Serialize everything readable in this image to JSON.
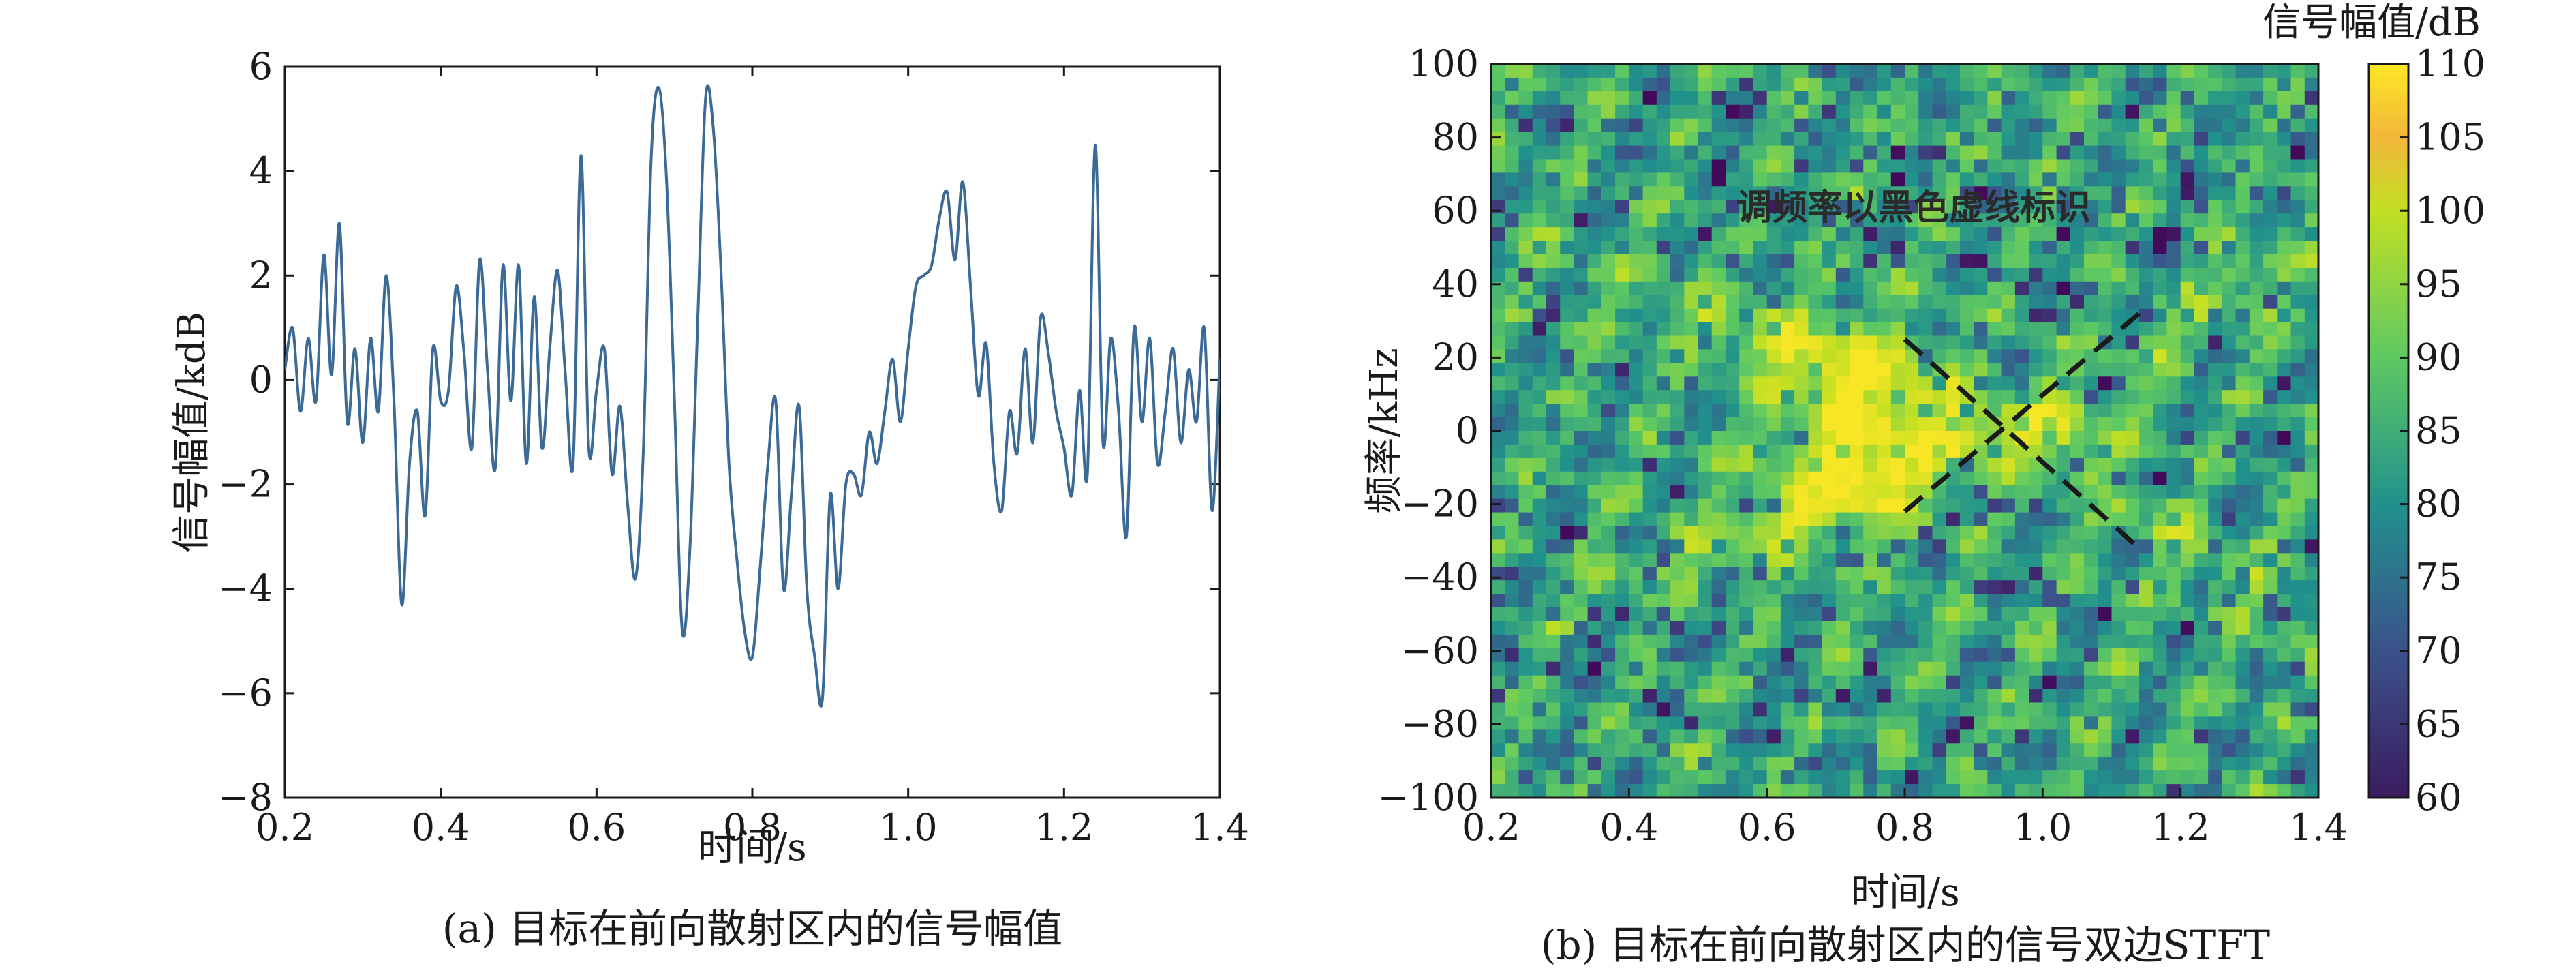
{
  "chart_data": [
    {
      "type": "line",
      "xlabel": "时间/s",
      "ylabel": "信号幅值/kdB",
      "caption": "(a) 目标在前向散射区内的信号幅值",
      "xlim": [
        0.2,
        1.4
      ],
      "ylim": [
        -8,
        6
      ],
      "xticks": [
        "0.2",
        "0.4",
        "0.6",
        "0.8",
        "1.0",
        "1.2",
        "1.4"
      ],
      "yticks": [
        "6",
        "4",
        "2",
        "0",
        "−2",
        "−4",
        "−6",
        "−8"
      ],
      "line_color": "#3b6a96",
      "series": [
        {
          "x": [
            0.2,
            0.21,
            0.22,
            0.23,
            0.24,
            0.25,
            0.26,
            0.27,
            0.28,
            0.29,
            0.3,
            0.31,
            0.32,
            0.33,
            0.34,
            0.35,
            0.36,
            0.37,
            0.38,
            0.39,
            0.4,
            0.41,
            0.42,
            0.43,
            0.44,
            0.45,
            0.46,
            0.47,
            0.48,
            0.49,
            0.5,
            0.51,
            0.52,
            0.53,
            0.54,
            0.55,
            0.56,
            0.57,
            0.58,
            0.59,
            0.6,
            0.61,
            0.62,
            0.63,
            0.64,
            0.65,
            0.66,
            0.67,
            0.68,
            0.69,
            0.7,
            0.71,
            0.72,
            0.73,
            0.74,
            0.75,
            0.76,
            0.77,
            0.78,
            0.79,
            0.8,
            0.81,
            0.82,
            0.83,
            0.84,
            0.85,
            0.86,
            0.87,
            0.88,
            0.89,
            0.9,
            0.91,
            0.92,
            0.93,
            0.94,
            0.95,
            0.96,
            0.97,
            0.98,
            0.99,
            1.0,
            1.01,
            1.02,
            1.03,
            1.04,
            1.05,
            1.06,
            1.07,
            1.08,
            1.09,
            1.1,
            1.11,
            1.12,
            1.13,
            1.14,
            1.15,
            1.16,
            1.17,
            1.18,
            1.19,
            1.2,
            1.21,
            1.22,
            1.23,
            1.24,
            1.25,
            1.26,
            1.27,
            1.28,
            1.29,
            1.3,
            1.31,
            1.32,
            1.33,
            1.34,
            1.35,
            1.36,
            1.37,
            1.38,
            1.39,
            1.4
          ],
          "y": [
            0.2,
            1.0,
            -0.6,
            0.8,
            -0.4,
            2.4,
            0.1,
            3.0,
            -0.8,
            0.6,
            -1.2,
            0.8,
            -0.6,
            2.0,
            -0.4,
            -4.3,
            -1.6,
            -0.6,
            -2.6,
            0.6,
            -0.4,
            -0.2,
            1.8,
            0.5,
            -1.3,
            2.3,
            0.2,
            -1.7,
            2.2,
            -0.4,
            2.2,
            -1.6,
            1.6,
            -1.3,
            0.6,
            2.1,
            0.1,
            -1.6,
            4.3,
            -1.3,
            -0.2,
            0.6,
            -1.8,
            -0.5,
            -2.4,
            -3.8,
            -1.4,
            4.2,
            5.6,
            3.8,
            -0.4,
            -4.8,
            -3.2,
            1.2,
            5.4,
            4.8,
            2.0,
            -1.6,
            -3.4,
            -4.8,
            -5.3,
            -3.6,
            -1.6,
            -0.4,
            -4.0,
            -2.2,
            -0.5,
            -4.0,
            -5.3,
            -6.1,
            -2.2,
            -4.0,
            -2.0,
            -1.8,
            -2.2,
            -1.0,
            -1.6,
            -0.6,
            0.4,
            -0.8,
            0.6,
            1.8,
            2.0,
            2.2,
            3.1,
            3.6,
            2.3,
            3.8,
            1.8,
            -0.3,
            0.7,
            -1.6,
            -2.5,
            -0.6,
            -1.4,
            0.6,
            -1.2,
            1.2,
            0.5,
            -0.6,
            -1.3,
            -2.2,
            -0.2,
            -1.8,
            4.5,
            -1.2,
            0.8,
            -0.6,
            -3.0,
            1.0,
            -0.8,
            0.8,
            -1.6,
            -0.6,
            0.6,
            -1.2,
            0.2,
            -0.8,
            1.0,
            -2.5,
            0.4
          ]
        }
      ]
    },
    {
      "type": "heatmap",
      "xlabel": "时间/s",
      "ylabel": "频率/kHz",
      "caption": "(b) 目标在前向散射区内的信号双边STFT",
      "annotation": "调频率以黑色虚线标识",
      "xlim": [
        0.2,
        1.4
      ],
      "ylim": [
        -100,
        100
      ],
      "xticks": [
        "0.2",
        "0.4",
        "0.6",
        "0.8",
        "1.0",
        "1.2",
        "1.4"
      ],
      "yticks": [
        "100",
        "80",
        "60",
        "40",
        "20",
        "0",
        "−20",
        "−40",
        "−60",
        "−80",
        "−100"
      ],
      "colorbar": {
        "label": "信号幅值/dB",
        "range": [
          60,
          110
        ],
        "ticks": [
          "110",
          "105",
          "100",
          "95",
          "90",
          "85",
          "80",
          "75",
          "70",
          "65",
          "60"
        ],
        "colormap": [
          "#440154",
          "#3b528b",
          "#21918c",
          "#5ec962",
          "#c2df23",
          "#fde725"
        ]
      },
      "dashed_lines": [
        {
          "x": [
            0.8,
            1.14
          ],
          "y": [
            25,
            -32
          ]
        },
        {
          "x": [
            0.8,
            1.14
          ],
          "y": [
            -22,
            32
          ]
        }
      ]
    }
  ]
}
